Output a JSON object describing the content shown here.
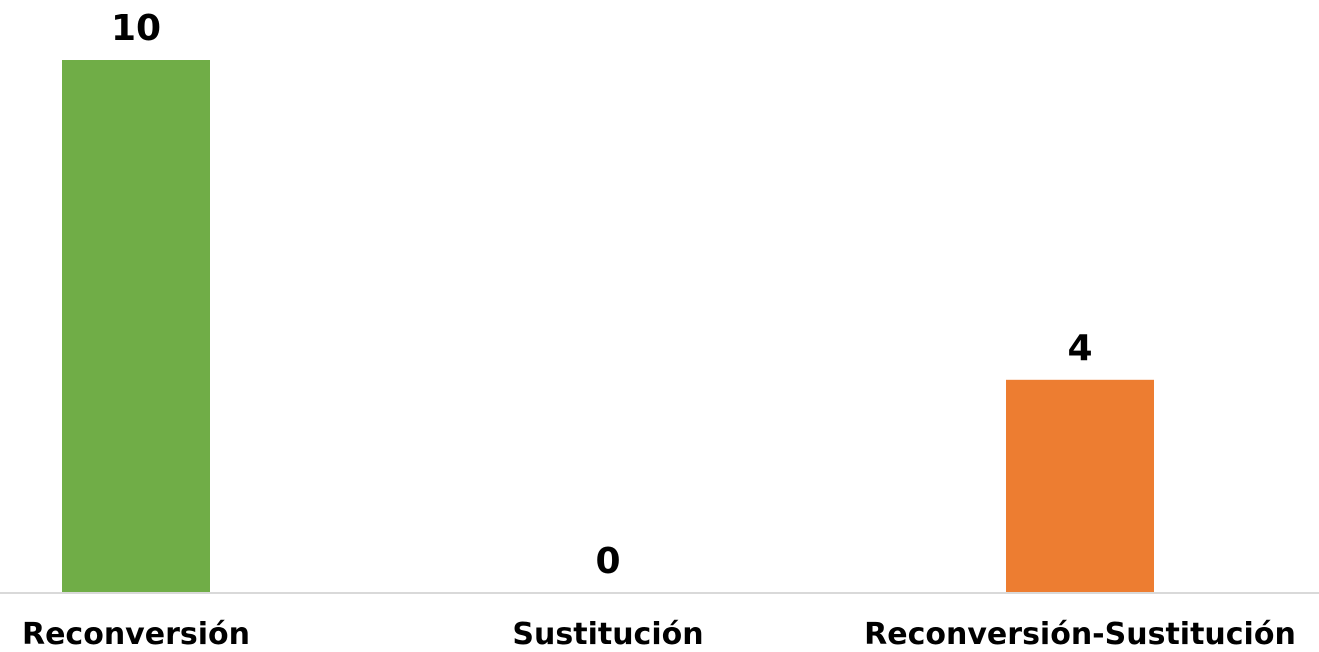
{
  "chart_data": {
    "type": "bar",
    "categories": [
      "Reconversión",
      "Sustitución",
      "Reconversión-Sustitución"
    ],
    "values": [
      10,
      0,
      4
    ],
    "colors": [
      "#70ad47",
      "#70ad47",
      "#ed7d31"
    ],
    "ylim": [
      0,
      10
    ],
    "grid": false,
    "legend": "none",
    "axis_color": "#d9d9d9",
    "data_labels": true
  }
}
